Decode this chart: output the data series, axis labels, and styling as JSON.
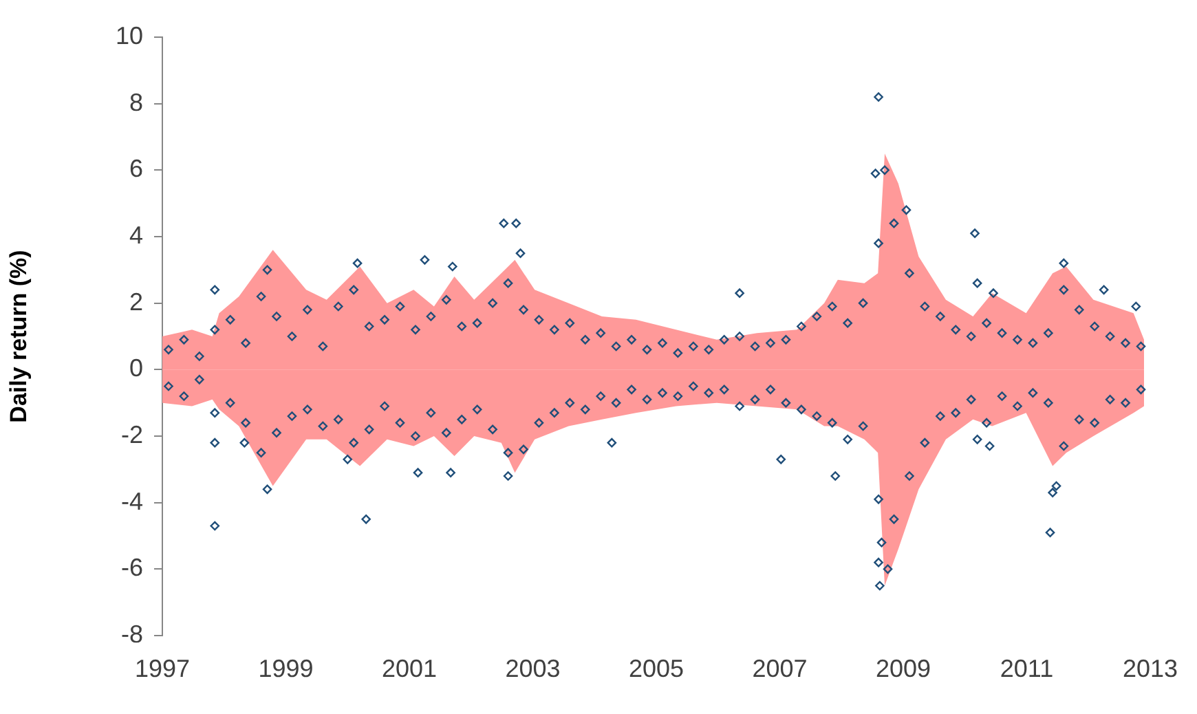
{
  "chart_data": {
    "type": "scatter",
    "ylabel": "Daily return (%)",
    "xlim": [
      1997,
      2013
    ],
    "ylim": [
      -8,
      10
    ],
    "xticks": [
      1997,
      1999,
      2001,
      2003,
      2005,
      2007,
      2009,
      2011,
      2013
    ],
    "yticks": [
      -8,
      -6,
      -4,
      -2,
      0,
      2,
      4,
      6,
      8,
      10
    ],
    "series": [
      {
        "type": "area",
        "color": "#ff9999",
        "x": [
          1997.0,
          1997.48,
          1997.81,
          1997.92,
          1998.24,
          1998.79,
          1999.33,
          1999.66,
          2000.2,
          2000.64,
          2001.07,
          2001.4,
          2001.73,
          2002.05,
          2002.49,
          2002.71,
          2003.03,
          2003.58,
          2004.12,
          2004.67,
          2005.32,
          2005.98,
          2006.63,
          2007.28,
          2007.72,
          2007.94,
          2008.37,
          2008.59,
          2008.7,
          2008.92,
          2009.25,
          2009.69,
          2010.13,
          2010.44,
          2010.99,
          2011.42,
          2011.64,
          2012.08,
          2012.73,
          2012.9
        ],
        "values": [
          1.0,
          1.2,
          1.0,
          1.7,
          2.2,
          3.6,
          2.4,
          2.1,
          3.1,
          2.0,
          2.4,
          1.9,
          2.8,
          2.1,
          2.9,
          3.3,
          2.4,
          2.0,
          1.6,
          1.5,
          1.2,
          0.9,
          1.1,
          1.2,
          2.0,
          2.7,
          2.6,
          2.9,
          6.5,
          5.6,
          3.4,
          2.1,
          1.6,
          2.3,
          1.7,
          2.9,
          3.1,
          2.1,
          1.7,
          0.9
        ]
      },
      {
        "type": "area",
        "color": "#ff9999",
        "x": [
          1997.0,
          1997.48,
          1997.81,
          1997.92,
          1998.24,
          1998.79,
          1999.33,
          1999.66,
          2000.2,
          2000.64,
          2001.07,
          2001.4,
          2001.73,
          2002.05,
          2002.49,
          2002.71,
          2003.03,
          2003.58,
          2004.12,
          2004.67,
          2005.32,
          2005.98,
          2006.63,
          2007.28,
          2007.72,
          2007.94,
          2008.37,
          2008.59,
          2008.7,
          2008.92,
          2009.25,
          2009.69,
          2010.13,
          2010.44,
          2010.99,
          2011.42,
          2011.64,
          2012.08,
          2012.73,
          2012.9
        ],
        "values": [
          -1.0,
          -1.1,
          -0.9,
          -1.2,
          -1.7,
          -3.5,
          -2.1,
          -2.1,
          -2.9,
          -2.1,
          -2.3,
          -2.0,
          -2.6,
          -2.0,
          -2.2,
          -3.1,
          -2.1,
          -1.7,
          -1.5,
          -1.3,
          -1.1,
          -1.0,
          -1.1,
          -1.2,
          -1.7,
          -1.7,
          -2.1,
          -2.5,
          -6.5,
          -5.4,
          -3.6,
          -2.1,
          -1.5,
          -1.7,
          -1.3,
          -2.9,
          -2.5,
          -2.0,
          -1.3,
          -1.1
        ]
      },
      {
        "type": "scatter",
        "color": "#1f4e79",
        "marker": "diamond",
        "x": [
          1997.1,
          1997.1,
          1997.35,
          1997.35,
          1997.6,
          1997.6,
          1997.85,
          1997.85,
          1998.1,
          1998.1,
          1998.35,
          1998.35,
          1998.6,
          1998.6,
          1998.85,
          1998.85,
          1999.1,
          1999.1,
          1999.35,
          1999.35,
          1999.6,
          1999.6,
          1999.85,
          1999.85,
          2000.1,
          2000.1,
          2000.35,
          2000.35,
          2000.6,
          2000.6,
          2000.85,
          2000.85,
          2001.1,
          2001.1,
          2001.35,
          2001.35,
          2001.6,
          2001.6,
          2001.85,
          2001.85,
          2002.1,
          2002.1,
          2002.35,
          2002.35,
          2002.6,
          2002.6,
          2002.85,
          2002.85,
          2003.1,
          2003.1,
          2003.35,
          2003.35,
          2003.6,
          2003.6,
          2003.85,
          2003.85,
          2004.1,
          2004.1,
          2004.35,
          2004.35,
          2004.6,
          2004.6,
          2004.85,
          2004.85,
          2005.1,
          2005.1,
          2005.35,
          2005.35,
          2005.6,
          2005.6,
          2005.85,
          2005.85,
          2006.1,
          2006.1,
          2006.35,
          2006.35,
          2006.6,
          2006.6,
          2006.85,
          2006.85,
          2007.1,
          2007.1,
          2007.35,
          2007.35,
          2007.6,
          2007.6,
          2007.85,
          2007.85,
          2008.1,
          2008.1,
          2008.35,
          2008.35,
          2008.6,
          2008.6,
          2008.85,
          2008.85,
          2009.1,
          2009.1,
          2009.35,
          2009.35,
          2009.6,
          2009.6,
          2009.85,
          2009.85,
          2010.1,
          2010.1,
          2010.35,
          2010.35,
          2010.6,
          2010.6,
          2010.85,
          2010.85,
          2011.1,
          2011.1,
          2011.35,
          2011.35,
          2011.6,
          2011.6,
          2011.85,
          2011.85,
          2012.1,
          2012.1,
          2012.35,
          2012.35,
          2012.6,
          2012.6,
          2012.85,
          2012.85,
          1997.85,
          1997.85,
          1998.7,
          1998.7,
          2000.3,
          2000.16,
          2001.25,
          2001.7,
          2001.14,
          2001.67,
          2000.0,
          2002.53,
          2002.73,
          2002.8,
          2002.6,
          2004.28,
          2006.35,
          2007.02,
          2008.6,
          2008.55,
          2008.7,
          2008.62,
          2008.6,
          2008.75,
          2008.65,
          2009.05,
          2010.16,
          2010.2,
          2010.46,
          2011.38,
          2011.42,
          2011.48,
          2011.6,
          2012.25,
          2012.77,
          2007.9,
          2010.2,
          2010.4,
          1997.85,
          1998.33
        ],
        "values": [
          0.6,
          -0.5,
          0.9,
          -0.8,
          -0.3,
          0.4,
          1.2,
          -1.3,
          1.5,
          -1.0,
          0.8,
          -1.6,
          2.2,
          -2.5,
          1.6,
          -1.9,
          1.0,
          -1.4,
          1.8,
          -1.2,
          0.7,
          -1.7,
          1.9,
          -1.5,
          2.4,
          -2.2,
          1.3,
          -1.8,
          1.5,
          -1.1,
          1.9,
          -1.6,
          1.2,
          -2.0,
          1.6,
          -1.3,
          2.1,
          -1.9,
          1.3,
          -1.5,
          1.4,
          -1.2,
          2.0,
          -1.8,
          2.6,
          -2.5,
          1.8,
          -2.4,
          1.5,
          -1.6,
          1.2,
          -1.3,
          1.4,
          -1.0,
          0.9,
          -1.2,
          1.1,
          -0.8,
          0.7,
          -1.0,
          0.9,
          -0.6,
          0.6,
          -0.9,
          0.8,
          -0.7,
          0.5,
          -0.8,
          0.7,
          -0.5,
          0.6,
          -0.7,
          0.9,
          -0.6,
          1.0,
          -1.1,
          0.7,
          -0.9,
          0.8,
          -0.6,
          0.9,
          -1.0,
          1.3,
          -1.2,
          1.6,
          -1.4,
          1.9,
          -1.6,
          1.4,
          -2.1,
          2.0,
          -1.7,
          3.8,
          -3.9,
          4.4,
          -4.5,
          2.9,
          -3.2,
          1.9,
          -2.2,
          1.6,
          -1.4,
          1.2,
          -1.3,
          1.0,
          -0.9,
          1.4,
          -1.6,
          1.1,
          -0.8,
          0.9,
          -1.1,
          0.8,
          -0.7,
          1.1,
          -1.0,
          2.4,
          -2.3,
          1.8,
          -1.5,
          1.3,
          -1.6,
          1.0,
          -0.9,
          0.8,
          -1.0,
          0.7,
          -0.6,
          -4.7,
          2.4,
          -3.6,
          3.0,
          -4.5,
          3.2,
          3.3,
          3.1,
          -3.1,
          -3.1,
          -2.7,
          4.4,
          4.4,
          3.5,
          -3.2,
          -2.2,
          2.3,
          -2.7,
          8.2,
          5.9,
          6.0,
          -6.5,
          -5.8,
          -6.0,
          -5.2,
          4.8,
          4.1,
          2.6,
          2.3,
          -4.9,
          -3.7,
          -3.5,
          3.2,
          2.4,
          1.9,
          -3.2,
          -2.1,
          -2.3,
          -2.2,
          -2.2
        ]
      }
    ]
  }
}
